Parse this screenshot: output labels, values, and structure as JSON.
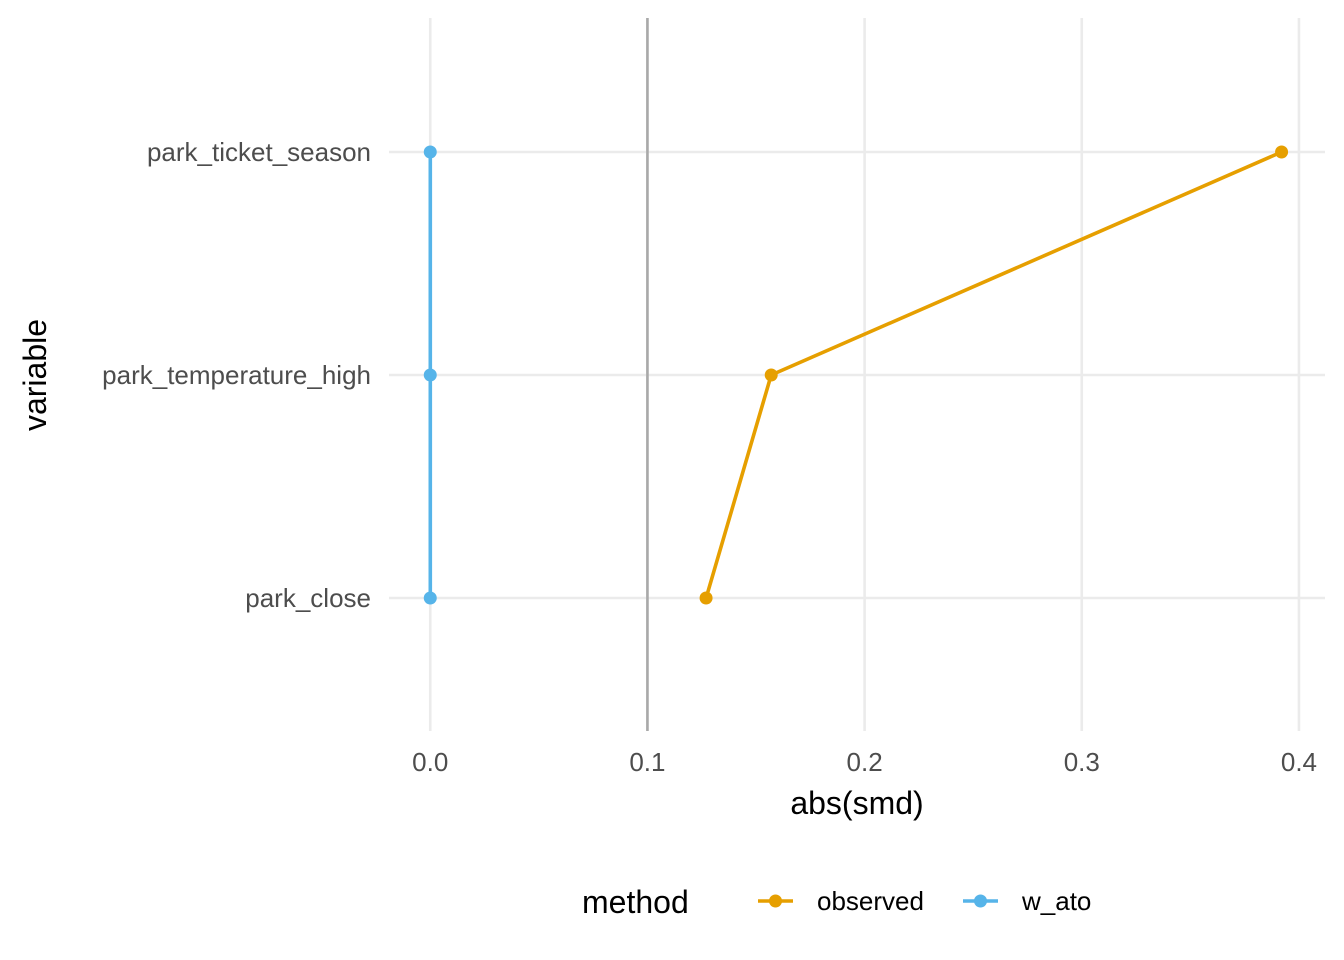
{
  "chart_data": {
    "type": "line",
    "xlabel": "abs(smd)",
    "ylabel": "variable",
    "xlim": [
      -0.019,
      0.412
    ],
    "x_ticks": [
      0.0,
      0.1,
      0.2,
      0.3,
      0.4
    ],
    "x_tick_labels": [
      "0.0",
      "0.1",
      "0.2",
      "0.3",
      "0.4"
    ],
    "categories": [
      "park_close",
      "park_temperature_high",
      "park_ticket_season"
    ],
    "reference_line": {
      "x": 0.1,
      "color": "#a9a9a9"
    },
    "grid": true,
    "legend": {
      "title": "method",
      "position": "bottom"
    },
    "series": [
      {
        "name": "observed",
        "color": "#E69F00",
        "values": [
          0.127,
          0.157,
          0.392
        ]
      },
      {
        "name": "w_ato",
        "color": "#56B4E9",
        "values": [
          0.0,
          0.0,
          0.0
        ]
      }
    ]
  }
}
